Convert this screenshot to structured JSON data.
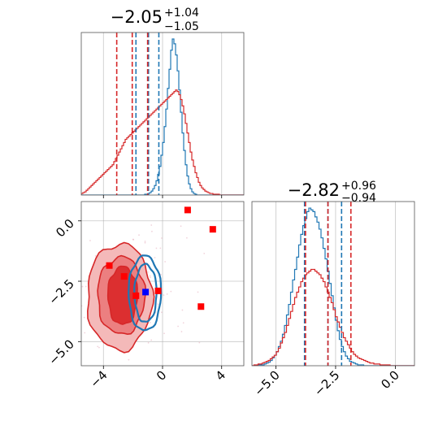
{
  "chart_data": [
    {
      "type": "histogram",
      "panel": "top-left",
      "parameter_index": 0,
      "title": {
        "median": "−2.05",
        "upper": "+1.04",
        "lower": "−1.05"
      },
      "xlim": [
        -5.5,
        5.5
      ],
      "xticks": [
        -4,
        0,
        4
      ],
      "series": [
        {
          "name": "",
          "color": "#1f77b4",
          "bin_edges_start": -5.5,
          "bin_width": 0.11,
          "counts": [
            0,
            0,
            0,
            0,
            0,
            0,
            0,
            0,
            0,
            0,
            0,
            0,
            0,
            0,
            0,
            0,
            0,
            0,
            0,
            0,
            0,
            0,
            0,
            0,
            0,
            0,
            0,
            0,
            0,
            0,
            0,
            0,
            0,
            0,
            0,
            0,
            0,
            0,
            0,
            1,
            1,
            2,
            3,
            5,
            8,
            12,
            18,
            26,
            36,
            50,
            66,
            86,
            108,
            134,
            158,
            182,
            196,
            190,
            176,
            156,
            132,
            104,
            78,
            56,
            38,
            24,
            14,
            8,
            4,
            2,
            1,
            0,
            0,
            0,
            0,
            0,
            0,
            0,
            0,
            0,
            0,
            0,
            0,
            0,
            0,
            0,
            0,
            0,
            0,
            0,
            0,
            0,
            0,
            0,
            0,
            0,
            0,
            0,
            0,
            0
          ],
          "quantiles": [
            -1.8,
            -0.95,
            -0.25
          ]
        },
        {
          "name": "",
          "color": "#d62728",
          "bin_edges_start": -5.5,
          "bin_width": 0.11,
          "counts": [
            2,
            3,
            4,
            6,
            8,
            10,
            12,
            14,
            16,
            18,
            20,
            22,
            24,
            26,
            28,
            30,
            32,
            34,
            36,
            38,
            42,
            46,
            50,
            54,
            58,
            62,
            66,
            70,
            72,
            74,
            76,
            78,
            80,
            82,
            84,
            86,
            88,
            90,
            92,
            94,
            96,
            98,
            100,
            102,
            104,
            106,
            108,
            110,
            112,
            114,
            116,
            118,
            120,
            122,
            124,
            126,
            128,
            130,
            132,
            130,
            126,
            120,
            112,
            102,
            90,
            78,
            66,
            54,
            44,
            36,
            28,
            22,
            16,
            12,
            9,
            7,
            5,
            4,
            3,
            2,
            2,
            1,
            1,
            1,
            1,
            0,
            0,
            0,
            0,
            0,
            0,
            0,
            0,
            0,
            0,
            0,
            0,
            0,
            0,
            0
          ],
          "quantiles": [
            -3.1,
            -2.05,
            -1.01
          ]
        }
      ]
    },
    {
      "type": "scatter-contour",
      "panel": "bottom-left",
      "xlim": [
        -5.5,
        5.5
      ],
      "ylim": [
        -6.0,
        0.8
      ],
      "xticks": [
        -4,
        0,
        4
      ],
      "yticks": [
        0.0,
        -2.5,
        -5.0
      ],
      "xtick_labels": [
        "−4",
        "0",
        "4"
      ],
      "ytick_labels": [
        "0.0",
        "−2.5",
        "−5.0"
      ],
      "series": [
        {
          "name": "",
          "color": "#d62728",
          "contours": [
            {
              "center": [
                -2.9,
                -3.15
              ],
              "rx": 2.2,
              "ry": 2.2,
              "level": "outer"
            },
            {
              "center": [
                -2.8,
                -3.1
              ],
              "rx": 1.6,
              "ry": 1.6,
              "level": "middle"
            },
            {
              "center": [
                -2.7,
                -3.1
              ],
              "rx": 1.0,
              "ry": 1.2,
              "level": "inner"
            }
          ],
          "markers": [
            [
              1.7,
              0.45
            ],
            [
              3.4,
              -0.35
            ],
            [
              -3.6,
              -1.85
            ],
            [
              -2.6,
              -2.3
            ],
            [
              -1.8,
              -3.1
            ],
            [
              -0.3,
              -2.9
            ],
            [
              2.6,
              -3.55
            ]
          ]
        },
        {
          "name": "",
          "color": "#1f77b4",
          "contours": [
            {
              "center": [
                -1.2,
                -3.0
              ],
              "rx": 1.1,
              "ry": 1.55,
              "level": "outer"
            },
            {
              "center": [
                -1.15,
                -3.0
              ],
              "rx": 0.75,
              "ry": 1.2,
              "level": "inner"
            }
          ],
          "markers": [
            [
              -1.15,
              -2.95
            ]
          ]
        }
      ]
    },
    {
      "type": "histogram",
      "panel": "bottom-right",
      "parameter_index": 1,
      "title": {
        "median": "−2.82",
        "upper": "+0.96",
        "lower": "−0.94"
      },
      "xlim": [
        -6.0,
        0.8
      ],
      "xticks": [
        -5.0,
        -2.5,
        0.0
      ],
      "xtick_labels": [
        "−5.0",
        "−2.5",
        "0.0"
      ],
      "series": [
        {
          "name": "",
          "color": "#1f77b4",
          "bin_edges_start": -6.0,
          "bin_width": 0.085,
          "counts": [
            0,
            0,
            0,
            1,
            1,
            1,
            2,
            3,
            4,
            6,
            9,
            12,
            16,
            22,
            28,
            36,
            46,
            58,
            70,
            84,
            98,
            110,
            124,
            138,
            150,
            160,
            168,
            176,
            180,
            178,
            176,
            170,
            164,
            156,
            146,
            134,
            122,
            108,
            94,
            80,
            66,
            52,
            40,
            30,
            22,
            16,
            11,
            8,
            5,
            4,
            3,
            2,
            1,
            1,
            1,
            0,
            0,
            0,
            0,
            0,
            0,
            0,
            0,
            0,
            0,
            0,
            0,
            0,
            0,
            0,
            0,
            0,
            0,
            0,
            0,
            0,
            0,
            0,
            0,
            0
          ],
          "quantiles": [
            -3.8,
            -2.82,
            -2.25
          ]
        },
        {
          "name": "",
          "color": "#d62728",
          "bin_edges_start": -6.0,
          "bin_width": 0.085,
          "counts": [
            0,
            1,
            1,
            2,
            2,
            3,
            4,
            5,
            6,
            8,
            10,
            12,
            16,
            20,
            26,
            32,
            38,
            46,
            54,
            62,
            70,
            78,
            84,
            90,
            96,
            100,
            104,
            106,
            108,
            110,
            110,
            108,
            106,
            104,
            100,
            96,
            90,
            84,
            78,
            72,
            64,
            56,
            50,
            44,
            38,
            32,
            28,
            24,
            20,
            16,
            13,
            11,
            9,
            8,
            7,
            6,
            5,
            4,
            3,
            3,
            2,
            2,
            2,
            1,
            1,
            1,
            1,
            1,
            0,
            0,
            0,
            0,
            0,
            0,
            0,
            0,
            0,
            0,
            0,
            0
          ],
          "quantiles": [
            -3.76,
            -2.82,
            -1.86
          ]
        }
      ]
    }
  ]
}
